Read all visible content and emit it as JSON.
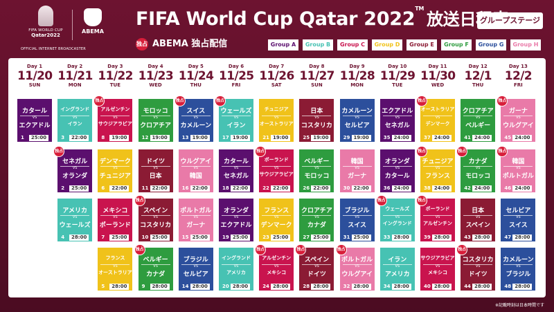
{
  "header": {
    "fifa_logo_line1": "FIFA WORLD CUP",
    "fifa_logo_line2": "Qatar2022",
    "abema_logo": "ABEMA",
    "broadcaster": "OFFICIAL INTERNET BROADCASTER",
    "title_main": "FIFA World Cup Qatar 2022",
    "title_tm": "TM",
    "title_jp": "放送日程表",
    "stage_badge": "グループステージ",
    "exclusive_badge": "独占",
    "exclusive_text": "ABEMA 独占配信"
  },
  "groups": [
    {
      "label": "Group A",
      "color": "#5b0f6e"
    },
    {
      "label": "Group B",
      "color": "#47c2b3"
    },
    {
      "label": "Group C",
      "color": "#c9144e"
    },
    {
      "label": "Group D",
      "color": "#f0c21a"
    },
    {
      "label": "Group E",
      "color": "#8b1b34"
    },
    {
      "label": "Group F",
      "color": "#2e9c3f"
    },
    {
      "label": "Group G",
      "color": "#2c4f9c"
    },
    {
      "label": "Group H",
      "color": "#e97aa8"
    }
  ],
  "days": [
    {
      "day": "Day 1",
      "date": "11/20",
      "dow": "SUN"
    },
    {
      "day": "Day 2",
      "date": "11/21",
      "dow": "MON"
    },
    {
      "day": "Day 3",
      "date": "11/22",
      "dow": "TUE"
    },
    {
      "day": "Day 4",
      "date": "11/23",
      "dow": "WED"
    },
    {
      "day": "Day 5",
      "date": "11/24",
      "dow": "THU"
    },
    {
      "day": "Day 6",
      "date": "11/25",
      "dow": "FRI"
    },
    {
      "day": "Day 7",
      "date": "11/26",
      "dow": "SAT"
    },
    {
      "day": "Day 8",
      "date": "11/27",
      "dow": "SUN"
    },
    {
      "day": "Day 9",
      "date": "11/28",
      "dow": "MON"
    },
    {
      "day": "Day 10",
      "date": "11/29",
      "dow": "TUE"
    },
    {
      "day": "Day 11",
      "date": "11/30",
      "dow": "WED"
    },
    {
      "day": "Day 12",
      "date": "12/1",
      "dow": "THU"
    },
    {
      "day": "Day 13",
      "date": "12/2",
      "dow": "FRI"
    }
  ],
  "vs_text": "VS",
  "matches": [
    {
      "col": 0,
      "row": 0,
      "t1": "カタール",
      "t2": "エクアドル",
      "num": "1",
      "time": "25:00",
      "group": "A",
      "ex": false
    },
    {
      "col": 1,
      "row": 0,
      "t1": "イングランド",
      "t2": "イラン",
      "num": "3",
      "time": "22:00",
      "group": "B",
      "ex": false
    },
    {
      "col": 1,
      "row": 1,
      "t1": "セネガル",
      "t2": "オランダ",
      "num": "2",
      "time": "25:00",
      "group": "A",
      "ex": true
    },
    {
      "col": 1,
      "row": 2,
      "t1": "アメリカ",
      "t2": "ウェールズ",
      "num": "4",
      "time": "28:00",
      "group": "B",
      "ex": false
    },
    {
      "col": 2,
      "row": 0,
      "t1": "アルゼンチン",
      "t2": "サウジアラビア",
      "num": "8",
      "time": "19:00",
      "group": "C",
      "ex": true
    },
    {
      "col": 2,
      "row": 1,
      "t1": "デンマーク",
      "t2": "チュニジア",
      "num": "6",
      "time": "22:00",
      "group": "D",
      "ex": false
    },
    {
      "col": 2,
      "row": 2,
      "t1": "メキシコ",
      "t2": "ポーランド",
      "num": "7",
      "time": "25:00",
      "group": "C",
      "ex": false
    },
    {
      "col": 2,
      "row": 3,
      "t1": "フランス",
      "t2": "オーストラリア",
      "num": "5",
      "time": "28:00",
      "group": "D",
      "ex": false
    },
    {
      "col": 3,
      "row": 0,
      "t1": "モロッコ",
      "t2": "クロアチア",
      "num": "12",
      "time": "19:00",
      "group": "F",
      "ex": false
    },
    {
      "col": 3,
      "row": 1,
      "t1": "ドイツ",
      "t2": "日本",
      "num": "11",
      "time": "22:00",
      "group": "E",
      "ex": false
    },
    {
      "col": 3,
      "row": 2,
      "t1": "スペイン",
      "t2": "コスタリカ",
      "num": "10",
      "time": "25:00",
      "group": "E",
      "ex": true
    },
    {
      "col": 3,
      "row": 3,
      "t1": "ベルギー",
      "t2": "カナダ",
      "num": "9",
      "time": "28:00",
      "group": "F",
      "ex": true
    },
    {
      "col": 4,
      "row": 0,
      "t1": "スイス",
      "t2": "カメルーン",
      "num": "13",
      "time": "19:00",
      "group": "G",
      "ex": true
    },
    {
      "col": 4,
      "row": 1,
      "t1": "ウルグアイ",
      "t2": "韓国",
      "num": "16",
      "time": "22:00",
      "group": "H",
      "ex": false
    },
    {
      "col": 4,
      "row": 2,
      "t1": "ポルトガル",
      "t2": "ガーナ",
      "num": "15",
      "time": "25:00",
      "group": "H",
      "ex": false
    },
    {
      "col": 4,
      "row": 3,
      "t1": "ブラジル",
      "t2": "セルビア",
      "num": "14",
      "time": "28:00",
      "group": "G",
      "ex": false
    },
    {
      "col": 5,
      "row": 0,
      "t1": "ウェールズ",
      "t2": "イラン",
      "num": "17",
      "time": "19:00",
      "group": "B",
      "ex": true
    },
    {
      "col": 5,
      "row": 1,
      "t1": "カタール",
      "t2": "セネガル",
      "num": "18",
      "time": "22:00",
      "group": "A",
      "ex": false
    },
    {
      "col": 5,
      "row": 2,
      "t1": "オランダ",
      "t2": "エクアドル",
      "num": "19",
      "time": "25:00",
      "group": "A",
      "ex": false
    },
    {
      "col": 5,
      "row": 3,
      "t1": "イングランド",
      "t2": "アメリカ",
      "num": "20",
      "time": "28:00",
      "group": "B",
      "ex": false
    },
    {
      "col": 6,
      "row": 0,
      "t1": "チュニジア",
      "t2": "オーストラリア",
      "num": "21",
      "time": "19:00",
      "group": "D",
      "ex": false
    },
    {
      "col": 6,
      "row": 1,
      "t1": "ポーランド",
      "t2": "サウジアラビア",
      "num": "22",
      "time": "22:00",
      "group": "C",
      "ex": true
    },
    {
      "col": 6,
      "row": 2,
      "t1": "フランス",
      "t2": "デンマーク",
      "num": "23",
      "time": "25:00",
      "group": "D",
      "ex": false
    },
    {
      "col": 6,
      "row": 3,
      "t1": "アルゼンチン",
      "t2": "メキシコ",
      "num": "24",
      "time": "28:00",
      "group": "C",
      "ex": true
    },
    {
      "col": 7,
      "row": 0,
      "t1": "日本",
      "t2": "コスタリカ",
      "num": "25",
      "time": "19:00",
      "group": "E",
      "ex": false
    },
    {
      "col": 7,
      "row": 1,
      "t1": "ベルギー",
      "t2": "モロッコ",
      "num": "26",
      "time": "22:00",
      "group": "F",
      "ex": false
    },
    {
      "col": 7,
      "row": 2,
      "t1": "クロアチア",
      "t2": "カナダ",
      "num": "27",
      "time": "25:00",
      "group": "F",
      "ex": false
    },
    {
      "col": 7,
      "row": 3,
      "t1": "スペイン",
      "t2": "ドイツ",
      "num": "28",
      "time": "28:00",
      "group": "E",
      "ex": true
    },
    {
      "col": 8,
      "row": 0,
      "t1": "カメルーン",
      "t2": "セルビア",
      "num": "29",
      "time": "19:00",
      "group": "G",
      "ex": false
    },
    {
      "col": 8,
      "row": 1,
      "t1": "韓国",
      "t2": "ガーナ",
      "num": "30",
      "time": "22:00",
      "group": "H",
      "ex": false
    },
    {
      "col": 8,
      "row": 2,
      "t1": "ブラジル",
      "t2": "スイス",
      "num": "31",
      "time": "25:00",
      "group": "G",
      "ex": false
    },
    {
      "col": 8,
      "row": 3,
      "t1": "ポルトガル",
      "t2": "ウルグアイ",
      "num": "32",
      "time": "28:00",
      "group": "H",
      "ex": true
    },
    {
      "col": 9,
      "row": 0,
      "t1": "エクアドル",
      "t2": "セネガル",
      "num": "35",
      "time": "24:00",
      "group": "A",
      "ex": false
    },
    {
      "col": 9,
      "row": 1,
      "t1": "オランダ",
      "t2": "カタール",
      "num": "36",
      "time": "24:00",
      "group": "A",
      "ex": false
    },
    {
      "col": 9,
      "row": 2,
      "t1": "ウェールズ",
      "t2": "イングランド",
      "num": "33",
      "time": "28:00",
      "group": "B",
      "ex": true
    },
    {
      "col": 9,
      "row": 3,
      "t1": "イラン",
      "t2": "アメリカ",
      "num": "34",
      "time": "28:00",
      "group": "B",
      "ex": false
    },
    {
      "col": 10,
      "row": 0,
      "t1": "オーストラリア",
      "t2": "デンマーク",
      "num": "37",
      "time": "24:00",
      "group": "D",
      "ex": true
    },
    {
      "col": 10,
      "row": 1,
      "t1": "チュニジア",
      "t2": "フランス",
      "num": "38",
      "time": "24:00",
      "group": "D",
      "ex": true
    },
    {
      "col": 10,
      "row": 2,
      "t1": "ポーランド",
      "t2": "アルゼンチン",
      "num": "39",
      "time": "28:00",
      "group": "C",
      "ex": true
    },
    {
      "col": 10,
      "row": 3,
      "t1": "サウジアラビア",
      "t2": "メキシコ",
      "num": "40",
      "time": "28:00",
      "group": "C",
      "ex": false
    },
    {
      "col": 11,
      "row": 0,
      "t1": "クロアチア",
      "t2": "ベルギー",
      "num": "41",
      "time": "24:00",
      "group": "F",
      "ex": false
    },
    {
      "col": 11,
      "row": 1,
      "t1": "カナダ",
      "t2": "モロッコ",
      "num": "42",
      "time": "24:00",
      "group": "F",
      "ex": true
    },
    {
      "col": 11,
      "row": 2,
      "t1": "日本",
      "t2": "スペイン",
      "num": "43",
      "time": "28:00",
      "group": "E",
      "ex": false
    },
    {
      "col": 11,
      "row": 3,
      "t1": "コスタリカ",
      "t2": "ドイツ",
      "num": "44",
      "time": "28:00",
      "group": "E",
      "ex": true
    },
    {
      "col": 12,
      "row": 0,
      "t1": "ガーナ",
      "t2": "ウルグアイ",
      "num": "45",
      "time": "24:00",
      "group": "H",
      "ex": true
    },
    {
      "col": 12,
      "row": 1,
      "t1": "韓国",
      "t2": "ポルトガル",
      "num": "46",
      "time": "24:00",
      "group": "H",
      "ex": true
    },
    {
      "col": 12,
      "row": 2,
      "t1": "セルビア",
      "t2": "スイス",
      "num": "47",
      "time": "28:00",
      "group": "G",
      "ex": false
    },
    {
      "col": 12,
      "row": 3,
      "t1": "カメルーン",
      "t2": "ブラジル",
      "num": "48",
      "time": "28:00",
      "group": "G",
      "ex": false
    }
  ],
  "footnote": "※記載時刻は日本時間です"
}
